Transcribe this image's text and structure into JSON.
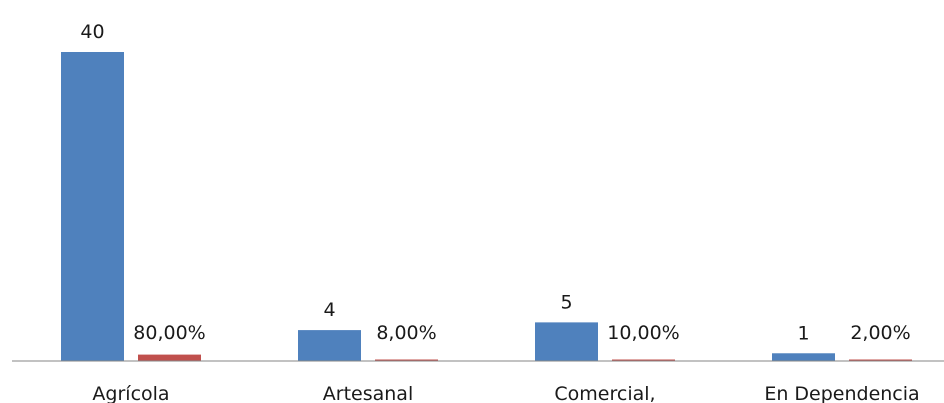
{
  "chart_data": {
    "type": "bar",
    "categories": [
      "Agrícola",
      "Artesanal",
      "Comercial,",
      "En Dependencia"
    ],
    "series": [
      {
        "values": [
          40,
          4,
          5,
          1
        ],
        "value_labels": [
          "40",
          "4",
          "5",
          "1"
        ],
        "color": "#4F81BD"
      },
      {
        "values": [
          0.8,
          0.08,
          0.1,
          0.02
        ],
        "value_labels": [
          "80,00%",
          "8,00%",
          "10,00%",
          "2,00%"
        ],
        "color": "#C0504D"
      }
    ],
    "title": "",
    "xlabel": "",
    "ylabel": "",
    "ylim": [
      0,
      40
    ],
    "grid": false,
    "legend": "none"
  }
}
